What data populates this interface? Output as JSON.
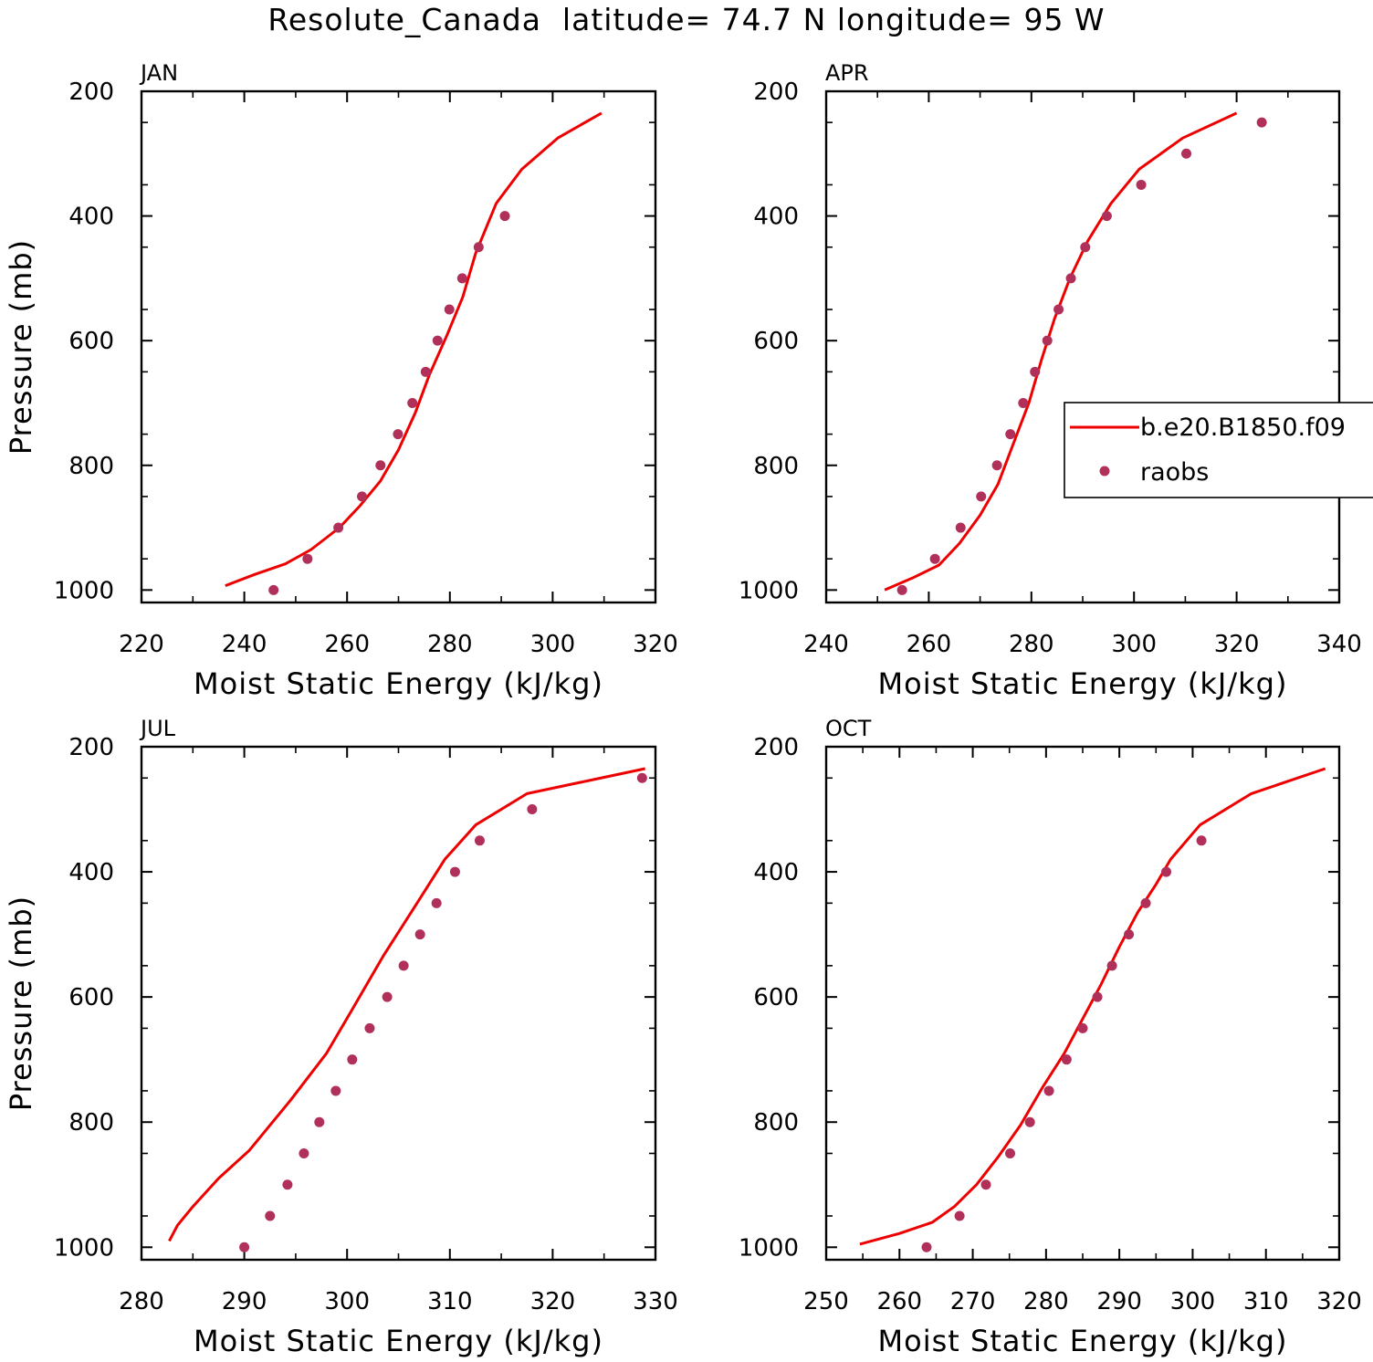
{
  "figure": {
    "title": "Resolute_Canada  latitude= 74.7 N longitude= 95 W",
    "ylabel": "Pressure (mb)",
    "xlabel": "Moist Static Energy (kJ/kg)"
  },
  "legend": {
    "placement": "APR panel, right side",
    "entries": [
      {
        "label": "b.e20.B1850.f09",
        "style": "line",
        "color": "#ee0000"
      },
      {
        "label": "raobs",
        "style": "marker",
        "color": "#b0305a"
      }
    ]
  },
  "colors": {
    "model": "#ee0000",
    "obs": "#b0305a",
    "axis": "#000000"
  },
  "chart_data": [
    {
      "type": "line",
      "panel": "JAN",
      "xlabel": "Moist Static Energy (kJ/kg)",
      "ylabel": "Pressure (mb)",
      "xlim": [
        220,
        320
      ],
      "xticks": [
        220,
        240,
        260,
        280,
        300,
        320
      ],
      "ylim": [
        1020,
        200
      ],
      "yticks": [
        200,
        400,
        600,
        800,
        1000
      ],
      "series": [
        {
          "name": "b.e20.B1850.f09",
          "kind": "line",
          "x": [
            236.3,
            242,
            248,
            253,
            258.5,
            262.5,
            266.5,
            270,
            273.3,
            276,
            279.5,
            282.5,
            285,
            289,
            294,
            301,
            309.5
          ],
          "y": [
            993,
            975,
            958,
            935,
            900,
            865,
            825,
            775,
            715,
            655,
            590,
            530,
            460,
            380,
            325,
            275,
            235
          ]
        },
        {
          "name": "raobs",
          "kind": "scatter",
          "x": [
            245.7,
            252.3,
            258.3,
            262.9,
            266.5,
            269.9,
            272.7,
            275.3,
            277.6,
            279.9,
            282.4,
            285.6,
            290.7
          ],
          "y": [
            1000,
            950,
            900,
            850,
            800,
            750,
            700,
            650,
            600,
            550,
            500,
            450,
            400
          ]
        }
      ]
    },
    {
      "type": "line",
      "panel": "APR",
      "xlabel": "Moist Static Energy (kJ/kg)",
      "ylabel": "",
      "xlim": [
        240,
        340
      ],
      "xticks": [
        240,
        260,
        280,
        300,
        320,
        340
      ],
      "ylim": [
        1020,
        200
      ],
      "yticks": [
        200,
        400,
        600,
        800,
        1000
      ],
      "series": [
        {
          "name": "b.e20.B1850.f09",
          "kind": "line",
          "x": [
            251.4,
            257,
            262,
            266,
            270,
            273.5,
            276.5,
            279.5,
            282,
            284.5,
            287.5,
            291,
            295.5,
            301,
            309.5,
            320
          ],
          "y": [
            1000,
            980,
            960,
            925,
            880,
            830,
            765,
            700,
            630,
            565,
            500,
            440,
            380,
            325,
            275,
            235
          ]
        },
        {
          "name": "raobs",
          "kind": "scatter",
          "x": [
            254.8,
            261.2,
            266.2,
            270.2,
            273.3,
            275.9,
            278.4,
            280.7,
            283.1,
            285.3,
            287.7,
            290.5,
            294.7,
            301.4,
            310.2,
            324.9
          ],
          "y": [
            1000,
            950,
            900,
            850,
            800,
            750,
            700,
            650,
            600,
            550,
            500,
            450,
            400,
            350,
            300,
            250
          ]
        }
      ]
    },
    {
      "type": "line",
      "panel": "JUL",
      "xlabel": "Moist Static Energy (kJ/kg)",
      "ylabel": "Pressure (mb)",
      "xlim": [
        280,
        330
      ],
      "xticks": [
        280,
        290,
        300,
        310,
        320,
        330
      ],
      "ylim": [
        1020,
        200
      ],
      "yticks": [
        200,
        400,
        600,
        800,
        1000
      ],
      "series": [
        {
          "name": "b.e20.B1850.f09",
          "kind": "line",
          "x": [
            282.7,
            283.5,
            285,
            287.5,
            290.5,
            294.5,
            298,
            300.5,
            303.5,
            307,
            309.5,
            312.5,
            317.5,
            329
          ],
          "y": [
            990,
            965,
            935,
            890,
            845,
            765,
            690,
            620,
            535,
            445,
            380,
            325,
            275,
            235
          ]
        },
        {
          "name": "raobs",
          "kind": "scatter",
          "x": [
            290.0,
            292.5,
            294.2,
            295.8,
            297.3,
            298.9,
            300.5,
            302.2,
            303.9,
            305.5,
            307.1,
            308.7,
            310.5,
            312.9,
            318.0,
            328.7
          ],
          "y": [
            1000,
            950,
            900,
            850,
            800,
            750,
            700,
            650,
            600,
            550,
            500,
            450,
            400,
            350,
            300,
            250
          ]
        }
      ]
    },
    {
      "type": "line",
      "panel": "OCT",
      "xlabel": "Moist Static Energy (kJ/kg)",
      "ylabel": "",
      "xlim": [
        250,
        320
      ],
      "xticks": [
        250,
        260,
        270,
        280,
        290,
        300,
        310,
        320
      ],
      "ylim": [
        1020,
        200
      ],
      "yticks": [
        200,
        400,
        600,
        800,
        1000
      ],
      "series": [
        {
          "name": "b.e20.B1850.f09",
          "kind": "line",
          "x": [
            254.6,
            260,
            264.5,
            267.5,
            270.5,
            273.5,
            276.5,
            279.5,
            282.5,
            285,
            287.5,
            290,
            292.5,
            295,
            297,
            301,
            308,
            318.1
          ],
          "y": [
            995,
            978,
            960,
            935,
            900,
            855,
            805,
            745,
            690,
            635,
            580,
            520,
            465,
            420,
            380,
            325,
            275,
            235
          ]
        },
        {
          "name": "raobs",
          "kind": "scatter",
          "x": [
            263.7,
            268.2,
            271.8,
            275.1,
            277.8,
            280.4,
            282.8,
            285.0,
            287.0,
            289.0,
            291.3,
            293.6,
            296.4,
            301.2
          ],
          "y": [
            1000,
            950,
            900,
            850,
            800,
            750,
            700,
            650,
            600,
            550,
            500,
            450,
            400,
            350
          ]
        }
      ]
    }
  ]
}
